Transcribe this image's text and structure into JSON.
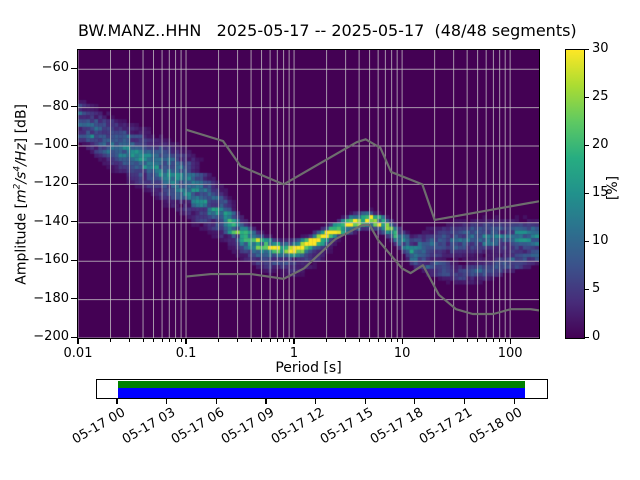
{
  "title": "BW.MANZ..HHN   2025-05-17 -- 2025-05-17  (48/48 segments)",
  "x_axis": {
    "label": "Period [s]",
    "scale": "log",
    "min": 0.01,
    "max": 185,
    "major_ticks": [
      {
        "value": 0.01,
        "label": "0.01"
      },
      {
        "value": 0.1,
        "label": "0.1"
      },
      {
        "value": 1,
        "label": "1"
      },
      {
        "value": 10,
        "label": "10"
      },
      {
        "value": 100,
        "label": "100"
      }
    ]
  },
  "y_axis": {
    "label_parts": [
      {
        "t": "Amplitude [",
        "style": "normal"
      },
      {
        "t": "m",
        "style": "italic"
      },
      {
        "t": "2",
        "style": "sup"
      },
      {
        "t": "/s",
        "style": "italic"
      },
      {
        "t": "4",
        "style": "sup"
      },
      {
        "t": "/Hz",
        "style": "italic"
      },
      {
        "t": "] [dB]",
        "style": "normal"
      }
    ],
    "min": -200,
    "max": -50,
    "ticks": [
      {
        "value": -60,
        "label": "−60"
      },
      {
        "value": -80,
        "label": "−80"
      },
      {
        "value": -100,
        "label": "−100"
      },
      {
        "value": -120,
        "label": "−120"
      },
      {
        "value": -140,
        "label": "−140"
      },
      {
        "value": -160,
        "label": "−160"
      },
      {
        "value": -180,
        "label": "−180"
      },
      {
        "value": -200,
        "label": "−200"
      }
    ]
  },
  "colorbar": {
    "label": "[%]",
    "min": 0,
    "max": 30,
    "ticks": [
      {
        "value": 0,
        "label": "0"
      },
      {
        "value": 5,
        "label": "5"
      },
      {
        "value": 10,
        "label": "10"
      },
      {
        "value": 15,
        "label": "15"
      },
      {
        "value": 20,
        "label": "20"
      },
      {
        "value": 25,
        "label": "25"
      },
      {
        "value": 30,
        "label": "30"
      }
    ],
    "gradient": [
      "#440154",
      "#472c7a",
      "#3b528b",
      "#2c718e",
      "#21918c",
      "#27ad81",
      "#5ec962",
      "#aadc32",
      "#fde725"
    ]
  },
  "timeline": {
    "tick_labels": [
      "05-17 00",
      "05-17 03",
      "05-17 06",
      "05-17 09",
      "05-17 12",
      "05-17 15",
      "05-17 18",
      "05-17 21",
      "05-18 00"
    ],
    "coverage_top_color": "#008000",
    "coverage_bottom_color": "#0000ff",
    "coverage_start_frac": 0.047,
    "coverage_end_frac": 0.946
  },
  "chart_data": {
    "type": "heatmap",
    "title": "BW.MANZ..HHN   2025-05-17 -- 2025-05-17  (48/48 segments)",
    "xlabel": "Period [s]",
    "ylabel": "Amplitude [m2/s4/Hz] [dB]",
    "zlabel": "[%]",
    "xlim": [
      0.01,
      185
    ],
    "ylim": [
      -200,
      -50
    ],
    "zlim": [
      0,
      30
    ],
    "x_scale": "log",
    "grid": true,
    "background_color": "#440154",
    "grid_color": "#c9c9c9",
    "noise_model_color": "#6e6e6e",
    "period_bins_per_decade": 26.7,
    "db_bin_height": 2,
    "psd_mode_ridge_comment": "points: [period_s, mode_dB, spread_sigma_dB, peak_probability_pct, lower_tail_pct]",
    "psd_mode_ridge": [
      [
        0.01,
        -87.0,
        6.0,
        10,
        0
      ],
      [
        0.016,
        -94.0,
        7.0,
        10,
        0
      ],
      [
        0.03,
        -103.0,
        8.0,
        10,
        0
      ],
      [
        0.06,
        -112.0,
        8.5,
        10,
        0
      ],
      [
        0.1,
        -120.0,
        9.0,
        10,
        0
      ],
      [
        0.15,
        -128.0,
        8.5,
        11,
        0
      ],
      [
        0.22,
        -136.0,
        7.0,
        12,
        0
      ],
      [
        0.32,
        -146.0,
        4.5,
        15,
        2
      ],
      [
        0.45,
        -150.5,
        3.0,
        20,
        4
      ],
      [
        0.6,
        -152.5,
        2.5,
        24,
        5
      ],
      [
        0.8,
        -154.0,
        2.2,
        27,
        5
      ],
      [
        1.0,
        -153.5,
        2.2,
        28,
        5
      ],
      [
        1.4,
        -151.0,
        2.2,
        28,
        4
      ],
      [
        2.0,
        -146.5,
        2.2,
        29,
        2
      ],
      [
        3.0,
        -141.5,
        2.2,
        30,
        0
      ],
      [
        4.2,
        -138.8,
        2.2,
        30,
        0
      ],
      [
        5.2,
        -138.6,
        2.2,
        30,
        0
      ],
      [
        6.5,
        -140.5,
        2.4,
        27,
        0
      ],
      [
        8.0,
        -144.0,
        2.6,
        22,
        0
      ],
      [
        10.0,
        -149.5,
        3.0,
        16,
        0
      ],
      [
        12.5,
        -154.0,
        3.5,
        12,
        0
      ],
      [
        16.0,
        -152.0,
        4.5,
        9,
        0
      ],
      [
        25.0,
        -149.5,
        4.5,
        8,
        0
      ],
      [
        45.0,
        -148.0,
        5.0,
        9,
        0
      ],
      [
        90.0,
        -147.0,
        5.0,
        10,
        0
      ],
      [
        150.0,
        -147.5,
        5.0,
        10,
        0
      ],
      [
        185.0,
        -148.0,
        5.0,
        9,
        0
      ]
    ],
    "secondary_band_comment": "lower long-period branch: [period_s, center_dB, sigma_dB, peak_pct]",
    "secondary_band": [
      [
        11.0,
        -157.0,
        2.5,
        0
      ],
      [
        13.0,
        -159.0,
        2.5,
        6
      ],
      [
        20.0,
        -163.0,
        3.0,
        7
      ],
      [
        35.0,
        -167.0,
        3.0,
        7
      ],
      [
        60.0,
        -165.0,
        3.0,
        7
      ],
      [
        100.0,
        -161.0,
        3.0,
        7
      ],
      [
        150.0,
        -158.0,
        3.0,
        6
      ],
      [
        185.0,
        -157.0,
        3.0,
        6
      ]
    ],
    "nhnm_comment": "Peterson New High Noise Model [period_s, dB]",
    "nhnm": [
      [
        0.1,
        -91.5
      ],
      [
        0.22,
        -97.4
      ],
      [
        0.32,
        -110.5
      ],
      [
        0.8,
        -120.0
      ],
      [
        3.8,
        -98.0
      ],
      [
        4.6,
        -96.5
      ],
      [
        6.3,
        -101.0
      ],
      [
        7.9,
        -113.5
      ],
      [
        15.4,
        -120.0
      ],
      [
        20.0,
        -138.5
      ],
      [
        185.0,
        -128.8
      ]
    ],
    "nlnm_comment": "Peterson New Low Noise Model [period_s, dB]",
    "nlnm": [
      [
        0.1,
        -168.0
      ],
      [
        0.17,
        -166.7
      ],
      [
        0.4,
        -166.7
      ],
      [
        0.8,
        -169.2
      ],
      [
        1.24,
        -163.7
      ],
      [
        2.4,
        -148.6
      ],
      [
        4.3,
        -141.1
      ],
      [
        5.0,
        -141.1
      ],
      [
        6.0,
        -149.0
      ],
      [
        10.0,
        -163.8
      ],
      [
        12.0,
        -166.2
      ],
      [
        15.6,
        -162.1
      ],
      [
        21.9,
        -177.5
      ],
      [
        31.6,
        -185.0
      ],
      [
        45.0,
        -187.5
      ],
      [
        70.0,
        -187.5
      ],
      [
        101.0,
        -185.0
      ],
      [
        154.0,
        -185.0
      ],
      [
        185.0,
        -185.6
      ]
    ]
  }
}
